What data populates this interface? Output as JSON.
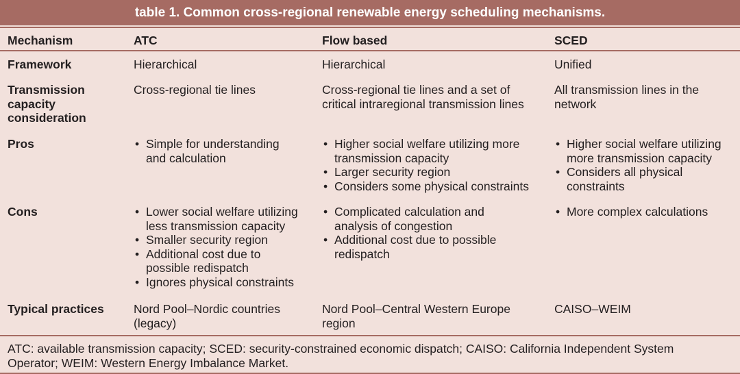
{
  "title": "table 1. Common cross-regional renewable energy scheduling mechanisms.",
  "headers": [
    "Mechanism",
    "ATC",
    "Flow based",
    "SCED"
  ],
  "rows": [
    {
      "label": [
        "Framework"
      ],
      "atc": [
        "Hierarchical"
      ],
      "flow": [
        "Hierarchical"
      ],
      "sced": [
        "Unified"
      ]
    },
    {
      "label": [
        "Transmission",
        "capacity",
        "consideration"
      ],
      "atc": [
        "Cross-regional tie lines"
      ],
      "flow": [
        "Cross-regional tie lines and a set of",
        "critical intraregional transmission lines"
      ],
      "sced": [
        "All transmission lines in the",
        "network"
      ]
    },
    {
      "label": [
        "Pros"
      ],
      "atc": [
        [
          "Simple for understanding",
          "and calculation"
        ]
      ],
      "flow": [
        [
          "Higher social welfare utilizing more",
          "transmission capacity"
        ],
        [
          "Larger security region"
        ],
        [
          "Considers some physical constraints"
        ]
      ],
      "sced": [
        [
          "Higher social welfare utilizing",
          "more transmission capacity"
        ],
        [
          "Considers all physical",
          "constraints"
        ]
      ]
    },
    {
      "label": [
        "Cons"
      ],
      "atc": [
        [
          "Lower social welfare utilizing",
          "less transmission capacity"
        ],
        [
          "Smaller security region"
        ],
        [
          "Additional cost due to",
          "possible redispatch"
        ],
        [
          "Ignores physical constraints"
        ]
      ],
      "flow": [
        [
          "Complicated calculation and",
          "analysis of congestion"
        ],
        [
          "Additional cost due to possible",
          "redispatch"
        ]
      ],
      "sced": [
        [
          "More complex calculations"
        ]
      ]
    },
    {
      "label": [
        "Typical practices"
      ],
      "atc": [
        "Nord Pool–Nordic countries",
        "(legacy)"
      ],
      "flow": [
        "Nord Pool–Central Western Europe",
        "region"
      ],
      "sced": [
        "CAISO–WEIM"
      ]
    }
  ],
  "footnote": [
    "ATC: available transmission capacity; SCED: security-constrained economic dispatch; CAISO: California Independent System",
    "Operator; WEIM: Western Energy Imbalance Market."
  ]
}
